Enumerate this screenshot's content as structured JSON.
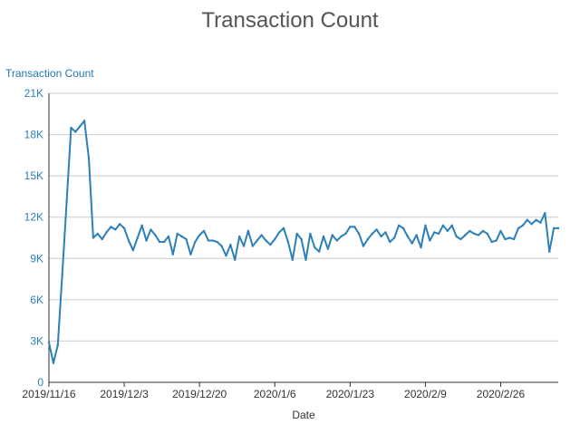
{
  "chart_data": {
    "type": "line",
    "title": "Transaction Count",
    "ylabel": "Transaction Count",
    "xlabel": "Date",
    "ylim": [
      0,
      21000
    ],
    "yticks": [
      0,
      3000,
      6000,
      9000,
      12000,
      15000,
      18000,
      21000
    ],
    "ytick_labels": [
      "0",
      "3K",
      "6K",
      "9K",
      "12K",
      "15K",
      "18K",
      "21K"
    ],
    "xticks": [
      "2019/11/16",
      "2019/12/3",
      "2019/12/20",
      "2020/1/6",
      "2020/1/23",
      "2020/2/9",
      "2020/2/26"
    ],
    "grid": "horizontal",
    "colors": {
      "line": "#2c7fb8",
      "axis_text": "#2c7fb8",
      "grid": "#cccccc"
    },
    "series": [
      {
        "x_start": "2019/11/16",
        "x_step_days": 1,
        "values": [
          2900,
          1400,
          2700,
          7800,
          13100,
          18500,
          18200,
          18600,
          19000,
          16300,
          10500,
          10800,
          10400,
          10900,
          11300,
          11100,
          11500,
          11200,
          10300,
          9600,
          10500,
          11400,
          10300,
          11100,
          10700,
          10200,
          10200,
          10600,
          9300,
          10800,
          10600,
          10400,
          9300,
          10200,
          10700,
          11000,
          10300,
          10300,
          10200,
          9900,
          9200,
          10000,
          8900,
          10600,
          9900,
          11000,
          9900,
          10300,
          10700,
          10300,
          10000,
          10400,
          10900,
          11200,
          10200,
          8900,
          10800,
          10400,
          8900,
          10800,
          9800,
          9500,
          10600,
          9700,
          10700,
          10300,
          10600,
          10800,
          11300,
          11300,
          10800,
          9900,
          10400,
          10800,
          11100,
          10600,
          10900,
          10200,
          10500,
          11400,
          11200,
          10600,
          10100,
          10700,
          9800,
          11400,
          10300,
          10900,
          10800,
          11400,
          11000,
          11400,
          10600,
          10400,
          10700,
          11000,
          10800,
          10700,
          11000,
          10800,
          10200,
          10300,
          11000,
          10400,
          10500,
          10400,
          11200,
          11400,
          11800,
          11500,
          11800,
          11600,
          12300,
          9500,
          11200,
          11200
        ]
      }
    ]
  }
}
